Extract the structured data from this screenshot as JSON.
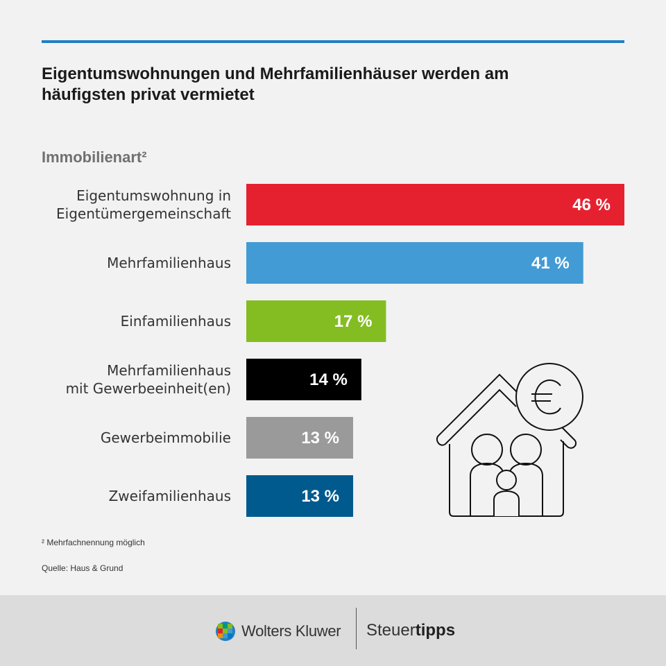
{
  "header": {
    "title": "Eigentumswohnungen und Mehrfamilienhäuser werden am häufigsten privat vermietet",
    "axis_heading": "Immobilienart²"
  },
  "chart_data": {
    "type": "bar",
    "orientation": "horizontal",
    "categories": [
      [
        "Eigentumswohnung in",
        "Eigentümergemeinschaft"
      ],
      [
        "Mehrfamilienhaus"
      ],
      [
        "Einfamilienhaus"
      ],
      [
        "Mehrfamilienhaus",
        "mit Gewerbeeinheit(en)"
      ],
      [
        "Gewerbeimmobilie"
      ],
      [
        "Zweifamilienhaus"
      ]
    ],
    "values": [
      46,
      41,
      17,
      14,
      13,
      13
    ],
    "value_labels": [
      "46 %",
      "41 %",
      "17 %",
      "14 %",
      "13 %",
      "13 %"
    ],
    "colors": [
      "#e52130",
      "#429bd4",
      "#84bd22",
      "#000000",
      "#9a9a9a",
      "#005a8e"
    ],
    "xlim": [
      0,
      46
    ],
    "grid": false,
    "legend": "none"
  },
  "notes": {
    "footnote": "² Mehrfachnennung möglich",
    "source": "Quelle: Haus & Grund"
  },
  "footer": {
    "brand_name": "Wolters Kluwer",
    "product_prefix": "Steuer",
    "product_suffix": "tipps"
  },
  "icons": {
    "illustration": "house-family-euro-icon",
    "brand_logo": "wolters-kluwer-logo-icon"
  }
}
